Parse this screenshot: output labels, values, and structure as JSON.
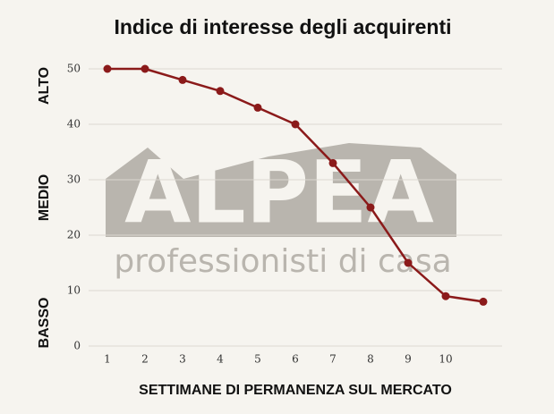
{
  "chart_data": {
    "type": "line",
    "title": "Indice di interesse degli acquirenti",
    "xlabel": "SETTIMANE DI PERMANENZA SUL MERCATO",
    "annotations": [
      "ALTO",
      "MEDIO",
      "BASSO"
    ],
    "watermark": [
      "ALPEA",
      "professionisti di casa"
    ],
    "x": [
      1,
      2,
      3,
      4,
      5,
      6,
      7,
      8,
      9,
      10,
      11
    ],
    "series": [
      {
        "name": "Indice",
        "color": "#8b1a1a",
        "values": [
          50,
          50,
          48,
          46,
          43,
          40,
          33,
          25,
          15,
          9,
          8
        ]
      }
    ],
    "xlim": [
      0.5,
      11.5
    ],
    "xticks": [
      1,
      2,
      3,
      4,
      5,
      6,
      7,
      8,
      9,
      10
    ],
    "ylim": [
      0,
      50
    ],
    "yticks": [
      0,
      10,
      20,
      30,
      40,
      50
    ],
    "grid": true
  }
}
